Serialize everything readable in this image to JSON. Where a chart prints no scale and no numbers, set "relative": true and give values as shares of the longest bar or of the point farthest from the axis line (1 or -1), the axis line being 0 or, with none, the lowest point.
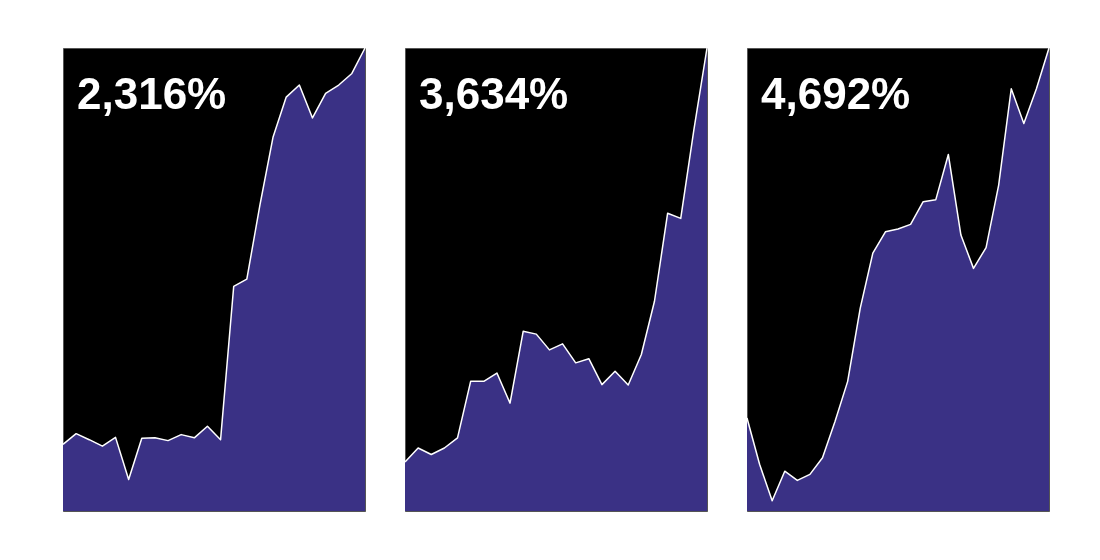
{
  "chart_data": [
    {
      "type": "area",
      "relative": true,
      "annotations": [
        "2,316%"
      ],
      "categories": [
        null,
        null,
        null,
        null,
        null,
        null,
        null,
        null,
        null,
        null,
        null,
        null,
        null,
        null,
        null,
        null,
        null,
        null,
        null,
        null,
        null,
        null,
        null,
        null
      ],
      "series": [
        {
          "color": "#3a3185",
          "values": [
            0.144,
            0.167,
            0.154,
            0.14,
            0.159,
            0.068,
            0.157,
            0.158,
            0.152,
            0.165,
            0.158,
            0.183,
            0.154,
            0.485,
            0.501,
            0.661,
            0.808,
            0.894,
            0.92,
            0.849,
            0.902,
            0.92,
            0.945,
            1
          ]
        }
      ]
    },
    {
      "type": "area",
      "relative": true,
      "annotations": [
        "3,634%"
      ],
      "categories": [
        null,
        null,
        null,
        null,
        null,
        null,
        null,
        null,
        null,
        null,
        null,
        null,
        null,
        null,
        null,
        null,
        null,
        null,
        null,
        null,
        null,
        null,
        null,
        null
      ],
      "series": [
        {
          "color": "#3a3185",
          "values": [
            0.106,
            0.136,
            0.122,
            0.136,
            0.158,
            0.28,
            0.28,
            0.298,
            0.233,
            0.388,
            0.382,
            0.348,
            0.361,
            0.32,
            0.329,
            0.273,
            0.302,
            0.272,
            0.338,
            0.453,
            0.643,
            0.632,
            0.823,
            1
          ]
        }
      ]
    },
    {
      "type": "area",
      "relative": true,
      "annotations": [
        "4,692%"
      ],
      "categories": [
        null,
        null,
        null,
        null,
        null,
        null,
        null,
        null,
        null,
        null,
        null,
        null,
        null,
        null,
        null,
        null,
        null,
        null,
        null,
        null,
        null,
        null,
        null,
        null,
        null
      ],
      "series": [
        {
          "color": "#3a3185",
          "values": [
            0.201,
            0.101,
            0.022,
            0.086,
            0.066,
            0.079,
            0.115,
            0.194,
            0.28,
            0.438,
            0.557,
            0.603,
            0.609,
            0.619,
            0.668,
            0.672,
            0.77,
            0.596,
            0.524,
            0.569,
            0.704,
            0.912,
            0.837,
            0.912,
            1
          ]
        }
      ]
    }
  ]
}
